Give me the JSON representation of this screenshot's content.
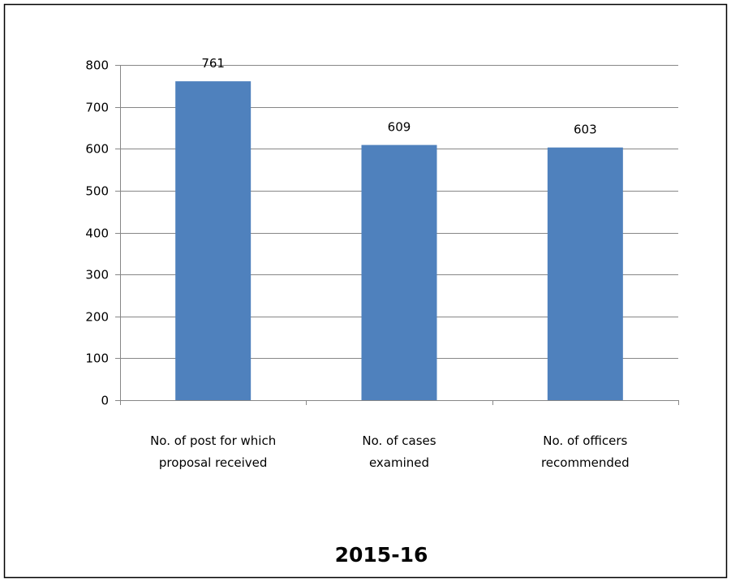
{
  "chart_data": {
    "type": "bar",
    "title": "2015-16",
    "categories": [
      [
        "No. of post for which",
        "proposal received"
      ],
      [
        "No. of cases",
        "examined"
      ],
      [
        "No. of officers",
        "recommended"
      ]
    ],
    "values": [
      761,
      609,
      603
    ],
    "data_labels": [
      "761",
      "609",
      "603"
    ],
    "xlabel": "",
    "ylabel": "",
    "ylim": [
      0,
      800
    ],
    "yticks": [
      0,
      100,
      200,
      300,
      400,
      500,
      600,
      700,
      800
    ],
    "ytick_labels": [
      "0",
      "100",
      "200",
      "300",
      "400",
      "500",
      "600",
      "700",
      "800"
    ],
    "grid": true,
    "legend": "none"
  },
  "colors": {
    "bar": "#4F81BD",
    "grid": "#878787",
    "axis": "#878787",
    "frame": "#000000"
  }
}
